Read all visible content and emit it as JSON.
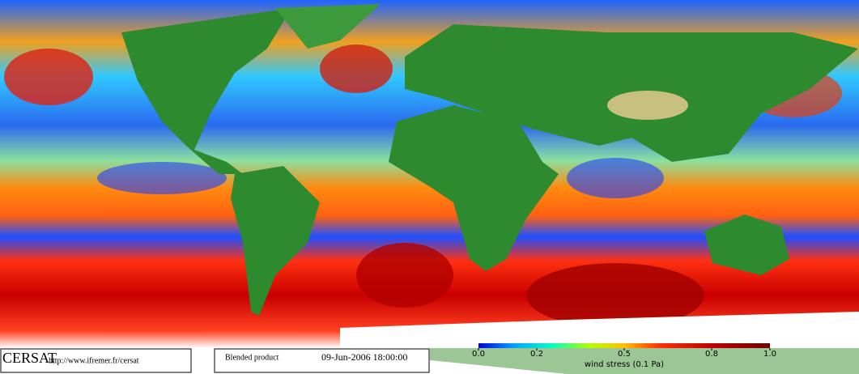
{
  "footer": {
    "logo": "CERSAT",
    "url": "http://www.ifremer.fr/cersat",
    "product": "Blended product",
    "date": "09-Jun-2006 18:00:00"
  },
  "colorbar": {
    "ticks": [
      {
        "value": 0,
        "label": "0.0"
      },
      0.2,
      0.5,
      0.8,
      {
        "value": 1,
        "label": "1.0"
      }
    ],
    "range": [
      0,
      1
    ],
    "label": "wind stress (0.1 Pa)"
  }
}
